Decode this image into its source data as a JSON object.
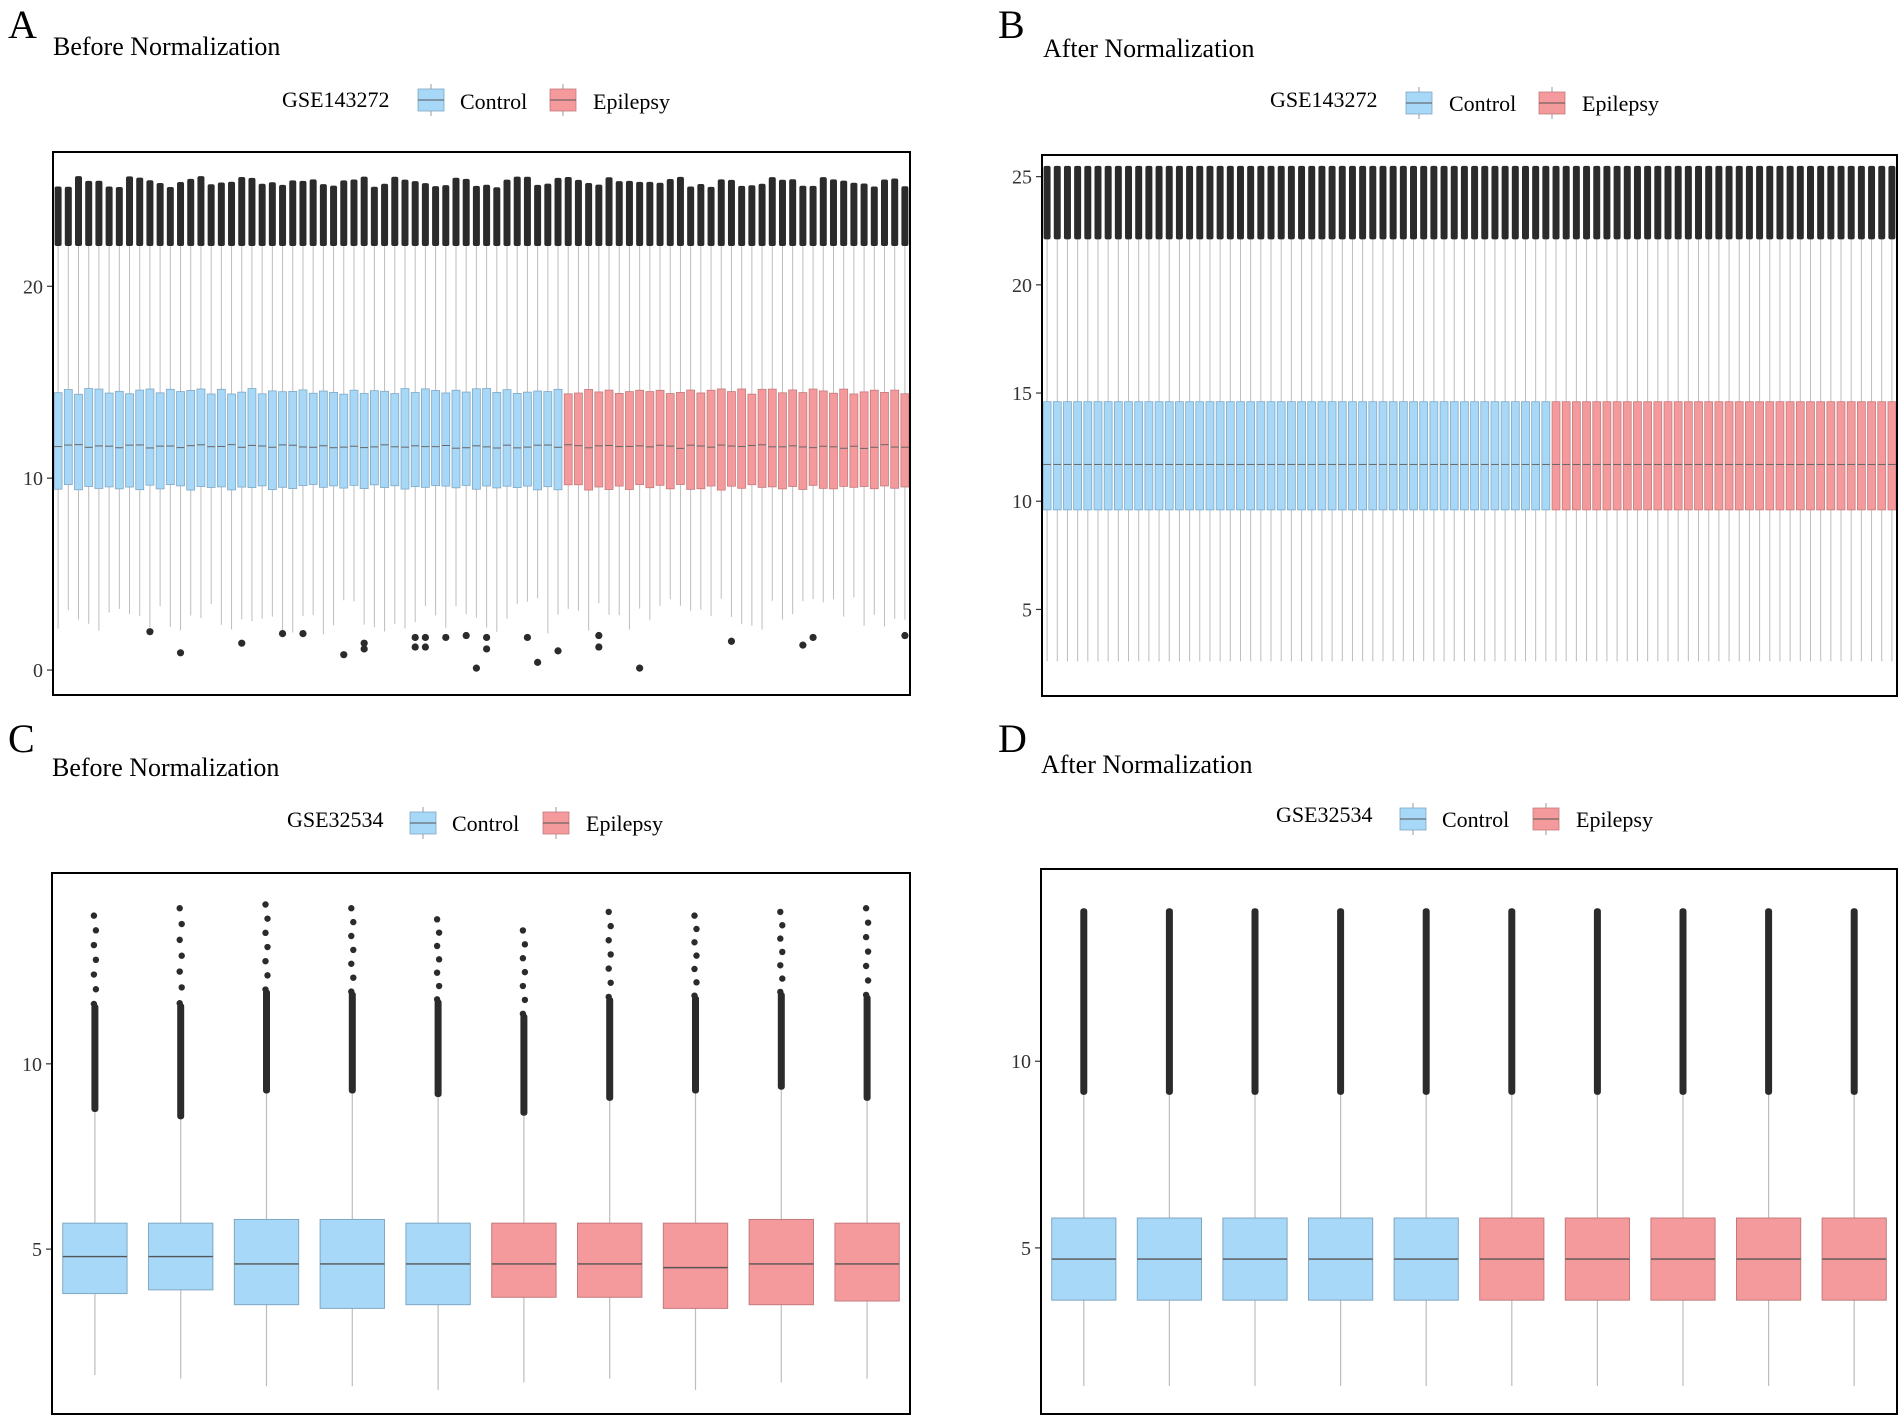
{
  "colors": {
    "control": "#a8d8f7",
    "control_stroke": "#7fa8c4",
    "epilepsy": "#f59a9c",
    "epilepsy_stroke": "#c47a7c",
    "whisker": "#bdbdbd",
    "outlier": "#2b2b2b",
    "frame": "#000000",
    "text": "#222222"
  },
  "chart_data": [
    {
      "panel": "A",
      "type": "box",
      "title": "Before Normalization",
      "legend_title": "GSE143272",
      "legend": [
        "Control",
        "Epilepsy"
      ],
      "ylim": [
        -1.3,
        27.0
      ],
      "yticks": [
        0,
        10,
        20
      ],
      "n_control": 50,
      "n_epilepsy": 34,
      "stats": {
        "q1": 9.6,
        "median": 11.7,
        "q3": 14.6,
        "whisker_low_range": [
          1.8,
          3.8
        ],
        "whisker_high": 22.1,
        "outlier_band": [
          22.1,
          25.6
        ]
      },
      "outliers": [
        [
          10,
          2.0
        ],
        [
          13,
          0.9
        ],
        [
          19,
          1.4
        ],
        [
          23,
          1.9
        ],
        [
          25,
          1.9
        ],
        [
          29,
          0.8
        ],
        [
          31,
          1.1
        ],
        [
          31,
          1.4
        ],
        [
          36,
          1.7
        ],
        [
          36,
          1.2
        ],
        [
          37,
          1.7
        ],
        [
          37,
          1.2
        ],
        [
          39,
          1.7
        ],
        [
          41,
          1.8
        ],
        [
          42,
          0.1
        ],
        [
          43,
          1.7
        ],
        [
          43,
          1.1
        ],
        [
          47,
          1.7
        ],
        [
          48,
          0.4
        ],
        [
          50,
          1.0
        ],
        [
          54,
          1.8
        ],
        [
          54,
          1.2
        ],
        [
          58,
          0.1
        ],
        [
          67,
          1.5
        ],
        [
          74,
          1.3
        ],
        [
          75,
          1.7
        ],
        [
          84,
          1.8
        ]
      ]
    },
    {
      "panel": "B",
      "type": "box",
      "title": "After Normalization",
      "legend_title": "GSE143272",
      "legend": [
        "Control",
        "Epilepsy"
      ],
      "ylim": [
        1.0,
        26.0
      ],
      "yticks": [
        5,
        10,
        15,
        20,
        25
      ],
      "n_control": 50,
      "n_epilepsy": 34,
      "stats": {
        "q1": 9.6,
        "median": 11.7,
        "q3": 14.6,
        "whisker_low": 2.6,
        "whisker_high": 22.1,
        "outlier_band": [
          22.1,
          25.5
        ]
      },
      "outliers": []
    },
    {
      "panel": "C",
      "type": "box",
      "title": "Before Normalization",
      "legend_title": "GSE32534",
      "legend": [
        "Control",
        "Epilepsy"
      ],
      "ylim": [
        0.55,
        15.15
      ],
      "yticks": [
        5,
        10
      ],
      "groups": [
        "Control",
        "Control",
        "Control",
        "Control",
        "Control",
        "Epilepsy",
        "Epilepsy",
        "Epilepsy",
        "Epilepsy",
        "Epilepsy"
      ],
      "boxes": [
        {
          "low": 1.6,
          "q1": 3.8,
          "median": 4.8,
          "q3": 5.7,
          "high": 8.7,
          "out_top": 14.0
        },
        {
          "low": 1.5,
          "q1": 3.9,
          "median": 4.8,
          "q3": 5.7,
          "high": 8.5,
          "out_top": 14.2
        },
        {
          "low": 1.3,
          "q1": 3.5,
          "median": 4.6,
          "q3": 5.8,
          "high": 9.2,
          "out_top": 14.3
        },
        {
          "low": 1.3,
          "q1": 3.4,
          "median": 4.6,
          "q3": 5.8,
          "high": 9.2,
          "out_top": 14.2
        },
        {
          "low": 1.2,
          "q1": 3.5,
          "median": 4.6,
          "q3": 5.7,
          "high": 9.1,
          "out_top": 13.9
        },
        {
          "low": 1.4,
          "q1": 3.7,
          "median": 4.6,
          "q3": 5.7,
          "high": 8.6,
          "out_top": 13.6
        },
        {
          "low": 1.5,
          "q1": 3.7,
          "median": 4.6,
          "q3": 5.7,
          "high": 9.0,
          "out_top": 14.1
        },
        {
          "low": 1.2,
          "q1": 3.4,
          "median": 4.5,
          "q3": 5.7,
          "high": 9.2,
          "out_top": 14.0
        },
        {
          "low": 1.4,
          "q1": 3.5,
          "median": 4.6,
          "q3": 5.8,
          "high": 9.3,
          "out_top": 14.1
        },
        {
          "low": 1.5,
          "q1": 3.6,
          "median": 4.6,
          "q3": 5.7,
          "high": 9.0,
          "out_top": 14.2
        }
      ]
    },
    {
      "panel": "D",
      "type": "box",
      "title": "After Normalization",
      "legend_title": "GSE32534",
      "legend": [
        "Control",
        "Epilepsy"
      ],
      "ylim": [
        0.55,
        15.15
      ],
      "yticks": [
        5,
        10
      ],
      "groups": [
        "Control",
        "Control",
        "Control",
        "Control",
        "Control",
        "Epilepsy",
        "Epilepsy",
        "Epilepsy",
        "Epilepsy",
        "Epilepsy"
      ],
      "boxes": [
        {
          "low": 1.3,
          "q1": 3.6,
          "median": 4.7,
          "q3": 5.8,
          "high": 9.1,
          "out_top": 14.1
        },
        {
          "low": 1.3,
          "q1": 3.6,
          "median": 4.7,
          "q3": 5.8,
          "high": 9.1,
          "out_top": 14.1
        },
        {
          "low": 1.3,
          "q1": 3.6,
          "median": 4.7,
          "q3": 5.8,
          "high": 9.1,
          "out_top": 14.1
        },
        {
          "low": 1.3,
          "q1": 3.6,
          "median": 4.7,
          "q3": 5.8,
          "high": 9.1,
          "out_top": 14.1
        },
        {
          "low": 1.3,
          "q1": 3.6,
          "median": 4.7,
          "q3": 5.8,
          "high": 9.1,
          "out_top": 14.1
        },
        {
          "low": 1.3,
          "q1": 3.6,
          "median": 4.7,
          "q3": 5.8,
          "high": 9.1,
          "out_top": 14.1
        },
        {
          "low": 1.3,
          "q1": 3.6,
          "median": 4.7,
          "q3": 5.8,
          "high": 9.1,
          "out_top": 14.1
        },
        {
          "low": 1.3,
          "q1": 3.6,
          "median": 4.7,
          "q3": 5.8,
          "high": 9.1,
          "out_top": 14.1
        },
        {
          "low": 1.3,
          "q1": 3.6,
          "median": 4.7,
          "q3": 5.8,
          "high": 9.1,
          "out_top": 14.1
        },
        {
          "low": 1.3,
          "q1": 3.6,
          "median": 4.7,
          "q3": 5.8,
          "high": 9.1,
          "out_top": 14.1
        }
      ]
    }
  ]
}
